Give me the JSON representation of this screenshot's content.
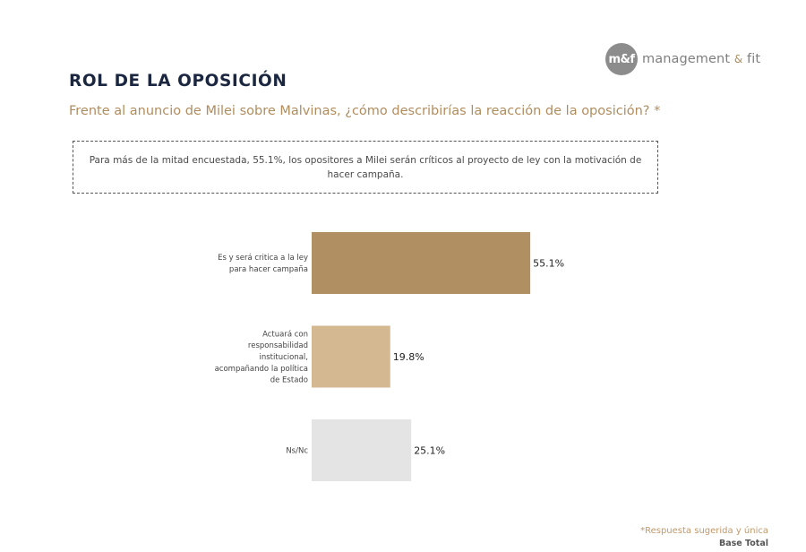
{
  "header": {
    "logo_mark": "m&f",
    "logo_text_1": "management",
    "logo_amp": "&",
    "logo_text_2": "fit",
    "title": "ROL DE LA OPOSICIÓN",
    "question": "Frente al anuncio de Milei sobre Malvinas, ¿cómo describirías la reacción de la oposición? *"
  },
  "note": "Para más de la mitad encuestada, 55.1%, los opositores a Milei serán críticos al proyecto de ley con la motivación de hacer campaña.",
  "footer": {
    "note": "*Respuesta sugerida y única",
    "base": "Base Total"
  },
  "chart_data": {
    "type": "bar",
    "orientation": "horizontal",
    "categories": [
      [
        "Es y será critica a la ley",
        "para hacer campaña"
      ],
      [
        "Actuará con",
        "responsabilidad",
        "institucional,",
        "acompañando la política",
        "de Estado"
      ],
      [
        "Ns/Nc"
      ]
    ],
    "values": [
      55.1,
      19.8,
      25.1
    ],
    "value_labels": [
      "55.1%",
      "19.8%",
      "25.1%"
    ],
    "colors": [
      "#b08f63",
      "#d4b891",
      "#e4e4e4"
    ],
    "xlim": [
      0,
      100
    ],
    "grid": false,
    "legend": "none"
  }
}
